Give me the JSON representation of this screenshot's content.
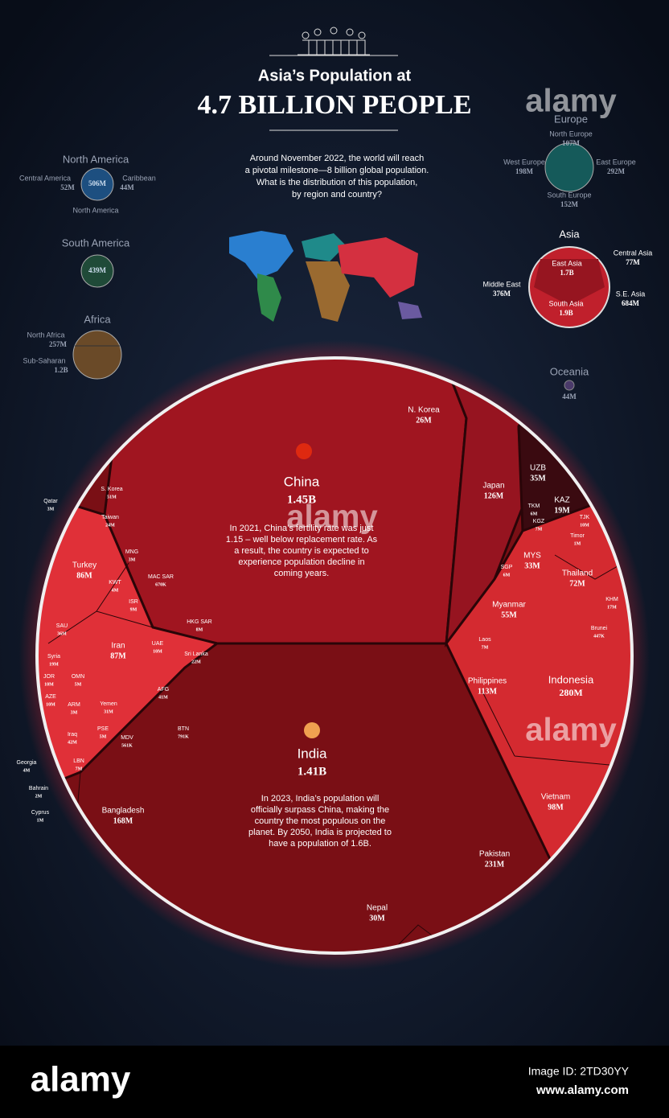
{
  "header": {
    "title": "Asia’s Population at",
    "headline": "4.7 BILLION PEOPLE",
    "intro": [
      "Around November 2022, the world will reach",
      "a pivotal milestone—8 billion global population.",
      "What is the distribution of this population,",
      "by region and country?"
    ]
  },
  "regions": {
    "north_america": {
      "title": "North America",
      "total": "506M",
      "label": "North America",
      "parts": [
        {
          "name": "Central America",
          "value": "52M"
        },
        {
          "name": "Caribbean",
          "value": "44M"
        }
      ]
    },
    "south_america": {
      "title": "South America",
      "total": "439M"
    },
    "africa": {
      "title": "Africa",
      "parts": [
        {
          "name": "North Africa",
          "value": "257M"
        },
        {
          "name": "Sub-Saharan",
          "value": "1.2B"
        }
      ]
    },
    "europe": {
      "title": "Europe",
      "parts": [
        {
          "name": "North Europe",
          "value": "107M"
        },
        {
          "name": "West Europe",
          "value": "198M"
        },
        {
          "name": "East Europe",
          "value": "292M"
        },
        {
          "name": "South  Europe",
          "value": "152M"
        }
      ]
    },
    "asia": {
      "title": "Asia",
      "parts": [
        {
          "name": "East Asia",
          "value": "1.7B"
        },
        {
          "name": "Central Asia",
          "value": "77M"
        },
        {
          "name": "Middle East",
          "value": "376M"
        },
        {
          "name": "S.E. Asia",
          "value": "684M"
        },
        {
          "name": "South Asia",
          "value": "1.9B"
        }
      ]
    },
    "oceania": {
      "title": "Oceania",
      "total": "44M"
    }
  },
  "countries": [
    {
      "name": "China",
      "value": "1.45B"
    },
    {
      "name": "India",
      "value": "1.41B"
    },
    {
      "name": "N. Korea",
      "value": "26M"
    },
    {
      "name": "Japan",
      "value": "126M"
    },
    {
      "name": "UZB",
      "value": "35M"
    },
    {
      "name": "KAZ",
      "value": "19M"
    },
    {
      "name": "TKM",
      "value": "6M"
    },
    {
      "name": "KGZ",
      "value": "7M"
    },
    {
      "name": "TJK",
      "value": "10M"
    },
    {
      "name": "Timor",
      "value": "1M"
    },
    {
      "name": "MYS",
      "value": "33M"
    },
    {
      "name": "SGP",
      "value": "6M"
    },
    {
      "name": "Thailand",
      "value": "72M"
    },
    {
      "name": "KHM",
      "value": "17M"
    },
    {
      "name": "Brunei",
      "value": "447K"
    },
    {
      "name": "Myanmar",
      "value": "55M"
    },
    {
      "name": "Laos",
      "value": "7M"
    },
    {
      "name": "Philippines",
      "value": "113M"
    },
    {
      "name": "Indonesia",
      "value": "280M"
    },
    {
      "name": "Vietnam",
      "value": "98M"
    },
    {
      "name": "Pakistan",
      "value": "231M"
    },
    {
      "name": "Nepal",
      "value": "30M"
    },
    {
      "name": "Bangladesh",
      "value": "168M"
    },
    {
      "name": "BTN",
      "value": "791K"
    },
    {
      "name": "MDV",
      "value": "561K"
    },
    {
      "name": "AFG",
      "value": "41M"
    },
    {
      "name": "Sri Lanka",
      "value": "22M"
    },
    {
      "name": "S. Korea",
      "value": "51M"
    },
    {
      "name": "Taiwan",
      "value": "24M"
    },
    {
      "name": "MNG",
      "value": "3M"
    },
    {
      "name": "MAC SAR",
      "value": "670K"
    },
    {
      "name": "HKG SAR",
      "value": "8M"
    },
    {
      "name": "Qatar",
      "value": "3M"
    },
    {
      "name": "Turkey",
      "value": "86M"
    },
    {
      "name": "KWT",
      "value": "4M"
    },
    {
      "name": "ISR",
      "value": "9M"
    },
    {
      "name": "SAU",
      "value": "36M"
    },
    {
      "name": "Iran",
      "value": "87M"
    },
    {
      "name": "UAE",
      "value": "10M"
    },
    {
      "name": "Syria",
      "value": "19M"
    },
    {
      "name": "OMN",
      "value": "5M"
    },
    {
      "name": "JOR",
      "value": "10M"
    },
    {
      "name": "AZE",
      "value": "10M"
    },
    {
      "name": "ARM",
      "value": "3M"
    },
    {
      "name": "Yemen",
      "value": "31M"
    },
    {
      "name": "PSE",
      "value": "5M"
    },
    {
      "name": "Iraq",
      "value": "42M"
    },
    {
      "name": "LBN",
      "value": "7M"
    },
    {
      "name": "Georgia",
      "value": "4M"
    },
    {
      "name": "Bahrain",
      "value": "2M"
    },
    {
      "name": "Cyprus",
      "value": "1M"
    }
  ],
  "notes": {
    "china": [
      "In 2021, China’s fertility rate was just",
      "1.15 – well below replacement rate. As",
      "a result, the country is expected to",
      "experience population decline in",
      "coming years."
    ],
    "india": [
      "In 2023, India’s population will",
      "officially surpass China, making the",
      "country the most populous on the",
      "planet. By 2050, India is projected to",
      "have a population of 1.6B."
    ]
  },
  "footer": {
    "brand": "alamy",
    "image_id": "Image ID: 2TD30YY",
    "site": "www.alamy.com"
  }
}
